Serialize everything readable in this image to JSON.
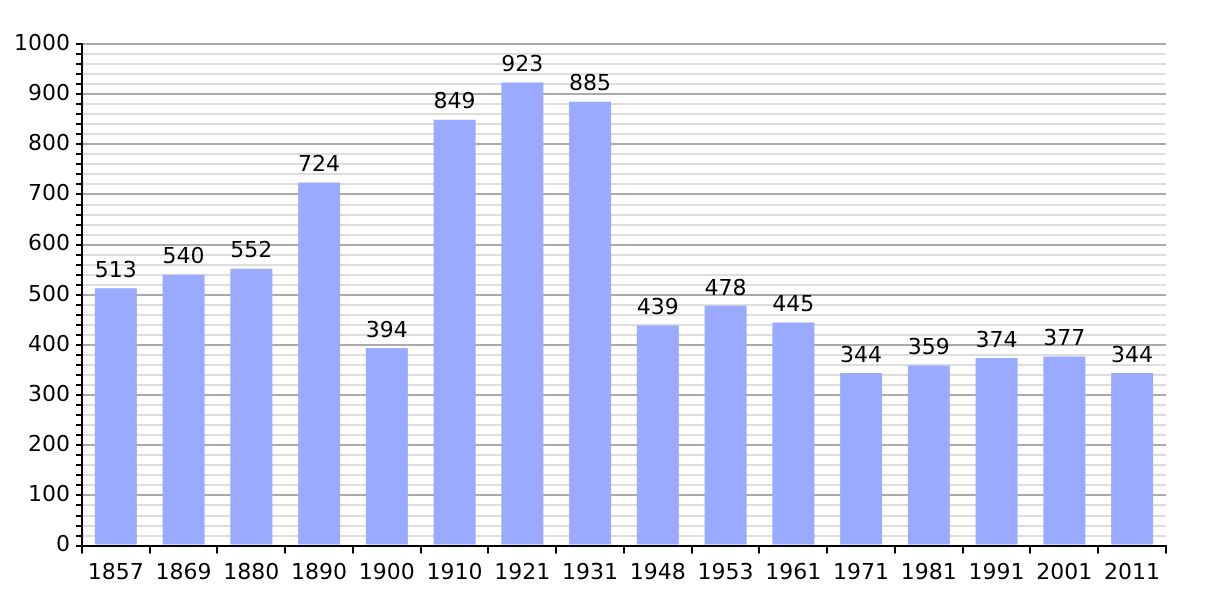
{
  "chart_data": {
    "type": "bar",
    "categories": [
      "1857",
      "1869",
      "1880",
      "1890",
      "1900",
      "1910",
      "1921",
      "1931",
      "1948",
      "1953",
      "1961",
      "1971",
      "1981",
      "1991",
      "2001",
      "2011"
    ],
    "values": [
      513,
      540,
      552,
      724,
      394,
      849,
      923,
      885,
      439,
      478,
      445,
      344,
      359,
      374,
      377,
      344
    ],
    "color": "#99aaff",
    "ylim": [
      0,
      1000
    ],
    "yticks": [
      0,
      {
        "value": 20,
        "label": null
      },
      {
        "value": 40,
        "label": null
      },
      {
        "value": 60,
        "label": null
      },
      {
        "value": 80,
        "label": null
      },
      100,
      {
        "value": 120,
        "label": null
      },
      {
        "value": 140,
        "label": null
      },
      {
        "value": 160,
        "label": null
      },
      {
        "value": 180,
        "label": null
      },
      200,
      {
        "value": 220,
        "label": null
      },
      {
        "value": 240,
        "label": null
      },
      {
        "value": 260,
        "label": null
      },
      {
        "value": 280,
        "label": null
      },
      300,
      {
        "value": 320,
        "label": null
      },
      {
        "value": 340,
        "label": null
      },
      {
        "value": 360,
        "label": null
      },
      {
        "value": 380,
        "label": null
      },
      400,
      {
        "value": 420,
        "label": null
      },
      {
        "value": 440,
        "label": null
      },
      {
        "value": 460,
        "label": null
      },
      {
        "value": 480,
        "label": null
      },
      500,
      {
        "value": 520,
        "label": null
      },
      {
        "value": 540,
        "label": null
      },
      {
        "value": 560,
        "label": null
      },
      {
        "value": 580,
        "label": null
      },
      600,
      {
        "value": 620,
        "label": null
      },
      {
        "value": 640,
        "label": null
      },
      {
        "value": 660,
        "label": null
      },
      {
        "value": 680,
        "label": null
      },
      700,
      {
        "value": 720,
        "label": null
      },
      {
        "value": 740,
        "label": null
      },
      {
        "value": 760,
        "label": null
      },
      {
        "value": 780,
        "label": null
      },
      800,
      {
        "value": 820,
        "label": null
      },
      {
        "value": 840,
        "label": null
      },
      {
        "value": 860,
        "label": null
      },
      {
        "value": 880,
        "label": null
      },
      900,
      {
        "value": 920,
        "label": null
      },
      {
        "value": 940,
        "label": null
      },
      {
        "value": 960,
        "label": null
      },
      {
        "value": 980,
        "label": null
      },
      1000
    ],
    "grid": true,
    "data_labels": true
  }
}
